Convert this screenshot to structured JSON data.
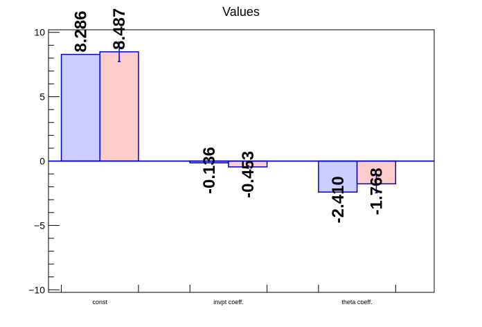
{
  "chart_data": {
    "type": "bar",
    "title": "Values",
    "categories": [
      "const",
      "invpt coeff.",
      "theta coeff."
    ],
    "series": [
      {
        "values": [
          8.286,
          -0.136,
          -2.41
        ],
        "labels": [
          "8.286",
          "-0.136",
          "-2.410"
        ],
        "errors": [
          0,
          0,
          0
        ],
        "fill": "#ccccff",
        "stroke": "#0000cc"
      },
      {
        "values": [
          8.487,
          -0.453,
          -1.768
        ],
        "labels": [
          "8.487",
          "-0.453",
          "-1.768"
        ],
        "errors": [
          0.75,
          0.1,
          0.7
        ],
        "fill": "#ffcccc",
        "stroke": "#0000cc"
      }
    ],
    "ylim": [
      -10.2,
      10.2
    ],
    "yticks": [
      -10,
      -5,
      0,
      5,
      10
    ],
    "ytick_labels": [
      "−10",
      "−5",
      "0",
      "5",
      "10"
    ],
    "grid": false,
    "xlabel": "",
    "ylabel": ""
  }
}
